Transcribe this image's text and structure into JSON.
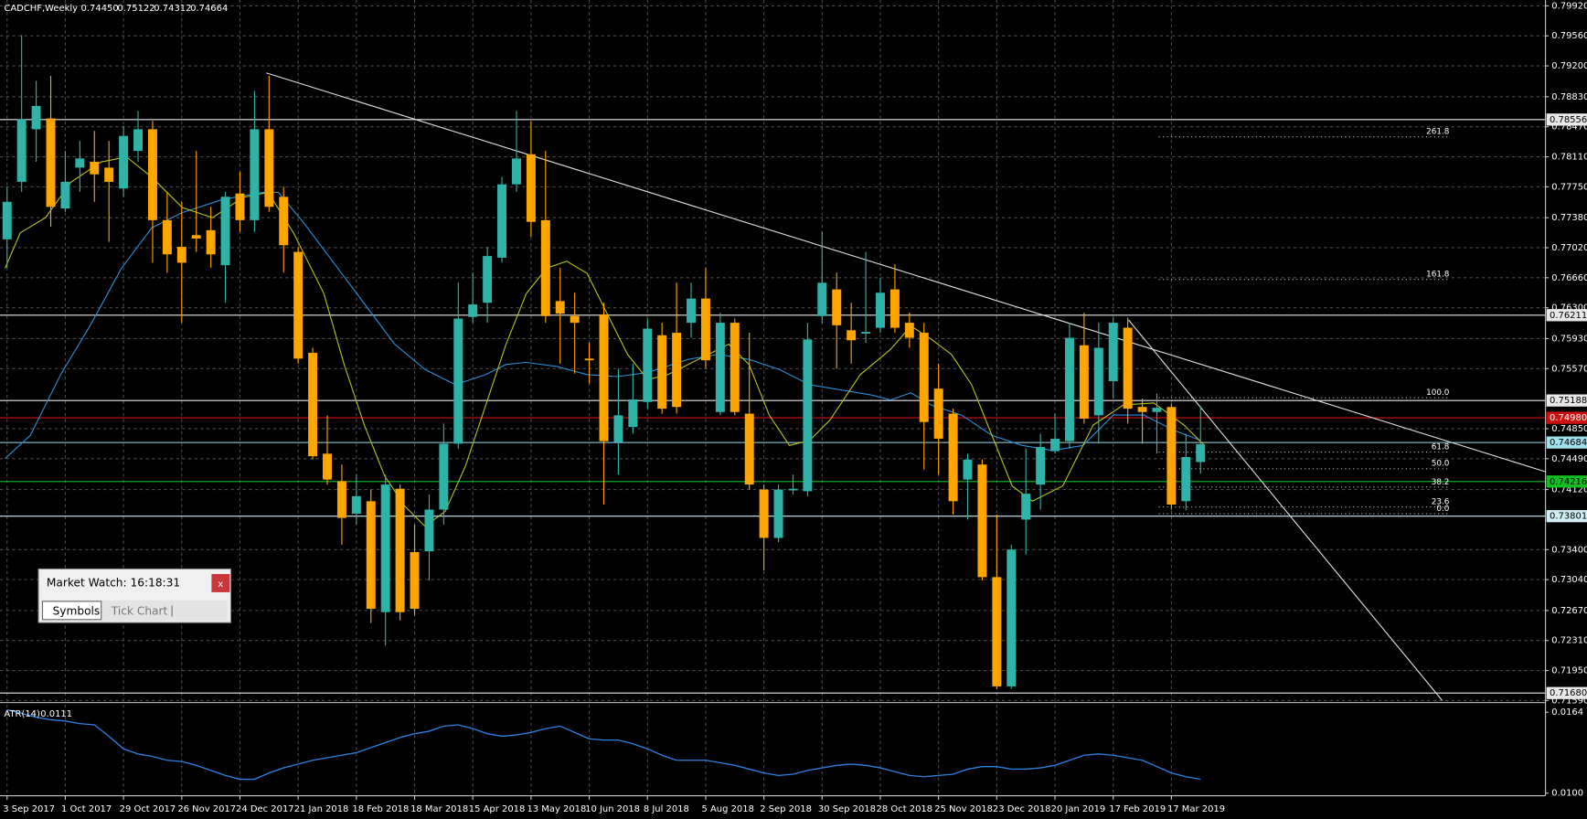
{
  "chart_data": {
    "type": "candlestick",
    "header": {
      "symbol": "CADCHF,Weekly",
      "ohlc": [
        "0.74450",
        "0.75122",
        "0.74312",
        "0.74664"
      ]
    },
    "categories": [
      "3 Sep 2017",
      null,
      null,
      null,
      "1 Oct 2017",
      null,
      null,
      null,
      "29 Oct 2017",
      null,
      null,
      null,
      "26 Nov 2017",
      null,
      null,
      null,
      "24 Dec 2017",
      null,
      null,
      null,
      "21 Jan 2018",
      null,
      null,
      null,
      "18 Feb 2018",
      null,
      null,
      null,
      "18 Mar 2018",
      null,
      null,
      null,
      "15 Apr 2018",
      null,
      null,
      null,
      "13 May 2018",
      null,
      null,
      null,
      "10 Jun 2018",
      null,
      null,
      null,
      "8 Jul 2018",
      null,
      null,
      null,
      "5 Aug 2018",
      null,
      null,
      null,
      "2 Sep 2018",
      null,
      null,
      null,
      "30 Sep 2018",
      null,
      null,
      null,
      "28 Oct 2018",
      null,
      null,
      null,
      "25 Nov 2018",
      null,
      null,
      null,
      "23 Dec 2018",
      null,
      null,
      null,
      "20 Jan 2019",
      null,
      null,
      null,
      "17 Feb 2019",
      null,
      null,
      null,
      "17 Mar 2019",
      null,
      null
    ],
    "open": [
      0.7712,
      0.7781,
      0.7844,
      0.7857,
      0.7749,
      0.7798,
      0.7805,
      0.7798,
      0.7773,
      0.7818,
      0.7844,
      0.7735,
      0.7703,
      0.7717,
      0.7723,
      0.7681,
      0.7767,
      0.7735,
      0.7844,
      0.7763,
      0.7697,
      0.7576,
      0.7455,
      0.7422,
      0.7383,
      0.7398,
      0.7265,
      0.7413,
      0.7337,
      0.7338,
      0.7388,
      0.7467,
      0.7619,
      0.7636,
      0.769,
      0.7778,
      0.7814,
      0.7735,
      0.7638,
      0.762,
      0.7569,
      0.7622,
      0.7469,
      0.7487,
      0.7517,
      0.7597,
      0.76,
      0.7612,
      0.7641,
      0.7505,
      0.7612,
      0.7503,
      0.7412,
      0.7354,
      0.7411,
      0.741,
      0.762,
      0.7652,
      0.7603,
      0.7599,
      0.7606,
      0.7652,
      0.7612,
      0.76,
      0.7533,
      0.7503,
      0.7424,
      0.7442,
      0.7307,
      0.7176,
      0.7376,
      0.7418,
      0.7458,
      0.747,
      0.7585,
      0.7501,
      0.7542,
      0.7606,
      0.7511,
      0.7505,
      0.7511,
      0.7398,
      0.7445
    ],
    "high": [
      0.7775,
      0.7957,
      0.7902,
      0.7908,
      0.7818,
      0.783,
      0.7842,
      0.783,
      0.7848,
      0.7866,
      0.7854,
      0.7769,
      0.7757,
      0.7818,
      0.7751,
      0.7769,
      0.7793,
      0.789,
      0.7908,
      0.7775,
      0.7703,
      0.7582,
      0.7501,
      0.7442,
      0.743,
      0.7412,
      0.743,
      0.7418,
      0.737,
      0.7406,
      0.7491,
      0.766,
      0.7672,
      0.7703,
      0.7787,
      0.7866,
      0.7854,
      0.7818,
      0.7678,
      0.7648,
      0.7588,
      0.7636,
      0.7557,
      0.7563,
      0.7617,
      0.7612,
      0.766,
      0.766,
      0.7678,
      0.7624,
      0.7617,
      0.76,
      0.7418,
      0.7418,
      0.743,
      0.7612,
      0.7721,
      0.7672,
      0.7636,
      0.7697,
      0.7666,
      0.7682,
      0.7624,
      0.7612,
      0.7563,
      0.7509,
      0.7455,
      0.7448,
      0.7382,
      0.7346,
      0.7461,
      0.7479,
      0.7503,
      0.7612,
      0.7624,
      0.7612,
      0.7618,
      0.7618,
      0.7521,
      0.7527,
      0.7515,
      0.7479,
      0.75122
    ],
    "low": [
      0.7678,
      0.7769,
      0.7805,
      0.7727,
      0.7745,
      0.7769,
      0.7757,
      0.7709,
      0.7763,
      0.7805,
      0.7684,
      0.7672,
      0.7612,
      0.7697,
      0.7678,
      0.7636,
      0.7721,
      0.7721,
      0.7745,
      0.7672,
      0.7563,
      0.7448,
      0.7418,
      0.7346,
      0.737,
      0.7252,
      0.7225,
      0.7255,
      0.7261,
      0.7303,
      0.737,
      0.7461,
      0.7612,
      0.7612,
      0.7684,
      0.7769,
      0.7715,
      0.7612,
      0.7563,
      0.7551,
      0.7539,
      0.7394,
      0.743,
      0.7479,
      0.7509,
      0.7503,
      0.7503,
      0.7594,
      0.7557,
      0.7501,
      0.7501,
      0.7412,
      0.7315,
      0.7349,
      0.7406,
      0.7404,
      0.7612,
      0.7557,
      0.7563,
      0.7588,
      0.76,
      0.76,
      0.7582,
      0.7436,
      0.743,
      0.7382,
      0.7376,
      0.7303,
      0.7173,
      0.7173,
      0.7334,
      0.7388,
      0.7455,
      0.7461,
      0.7491,
      0.7467,
      0.7521,
      0.7491,
      0.7467,
      0.7455,
      0.7388,
      0.7387,
      0.74312
    ],
    "close": [
      0.7757,
      0.7856,
      0.7872,
      0.7751,
      0.7781,
      0.7809,
      0.779,
      0.7781,
      0.7836,
      0.7844,
      0.7735,
      0.7694,
      0.7684,
      0.7713,
      0.7694,
      0.7763,
      0.7735,
      0.7844,
      0.7751,
      0.7705,
      0.7569,
      0.7452,
      0.7424,
      0.7378,
      0.7404,
      0.7269,
      0.7418,
      0.7265,
      0.7269,
      0.7388,
      0.7467,
      0.7617,
      0.7634,
      0.7692,
      0.7778,
      0.7809,
      0.7733,
      0.762,
      0.7623,
      0.7612,
      0.7567,
      0.747,
      0.7501,
      0.752,
      0.7605,
      0.7509,
      0.7511,
      0.7641,
      0.7567,
      0.7612,
      0.7505,
      0.7418,
      0.7354,
      0.7412,
      0.7413,
      0.7592,
      0.766,
      0.7609,
      0.7591,
      0.7601,
      0.7648,
      0.7606,
      0.7594,
      0.7493,
      0.7473,
      0.7398,
      0.7448,
      0.7307,
      0.7176,
      0.734,
      0.7407,
      0.7463,
      0.7473,
      0.7594,
      0.7497,
      0.7582,
      0.7612,
      0.7509,
      0.7505,
      0.751,
      0.7394,
      0.7451,
      0.74664
    ],
    "up_color": "#2fb3a8",
    "down_color": "#ffa500",
    "ylim": [
      0.7159,
      0.7999
    ],
    "yticks": [
      {
        "value": 0.7992,
        "label": "0.79920"
      },
      {
        "value": 0.7956,
        "label": "0.79560"
      },
      {
        "value": 0.792,
        "label": "0.79200"
      },
      {
        "value": 0.7883,
        "label": "0.78830"
      },
      {
        "value": 0.7847,
        "label": "0.78470"
      },
      {
        "value": 0.7811,
        "label": "0.78110"
      },
      {
        "value": 0.7775,
        "label": "0.77750"
      },
      {
        "value": 0.7738,
        "label": "0.77380"
      },
      {
        "value": 0.7702,
        "label": "0.77020"
      },
      {
        "value": 0.7666,
        "label": "0.76660"
      },
      {
        "value": 0.763,
        "label": "0.76300"
      },
      {
        "value": 0.7593,
        "label": "0.75930"
      },
      {
        "value": 0.7557,
        "label": "0.75570"
      },
      {
        "value": 0.7485,
        "label": "0.74850"
      },
      {
        "value": 0.7449,
        "label": "0.74490"
      },
      {
        "value": 0.7412,
        "label": "0.74120"
      },
      {
        "value": 0.734,
        "label": "0.73400"
      },
      {
        "value": 0.7304,
        "label": "0.73040"
      },
      {
        "value": 0.7267,
        "label": "0.72670"
      },
      {
        "value": 0.7231,
        "label": "0.72310"
      },
      {
        "value": 0.7195,
        "label": "0.71950"
      },
      {
        "value": 0.7159,
        "label": "0.71590"
      }
    ],
    "grid": true,
    "grid_color": "#4a4a4a",
    "levels": [
      {
        "value": 0.78556,
        "label": "0.78556",
        "color": "#e8e8e8"
      },
      {
        "value": 0.76211,
        "label": "0.76211",
        "color": "#e8e8e8"
      },
      {
        "value": 0.75188,
        "label": "0.75188",
        "color": "#e8e8e8"
      },
      {
        "value": 0.7498,
        "label": "0.74980",
        "color": "#d01010"
      },
      {
        "value": 0.74684,
        "label": "0.74684",
        "color": "#9fe0ec"
      },
      {
        "value": 0.74216,
        "label": "0.74216",
        "color": "#10c020"
      },
      {
        "value": 0.73801,
        "label": "0.73801",
        "color": "#cfeef5"
      },
      {
        "value": 0.7168,
        "label": "0.71680",
        "color": "#e8e8e8"
      }
    ],
    "fib": [
      {
        "label": "261.8",
        "price": 0.7835
      },
      {
        "label": "161.8",
        "price": 0.7664
      },
      {
        "label": "100.0",
        "price": 0.7522
      },
      {
        "label": "61.8",
        "price": 0.7457
      },
      {
        "label": "50.0",
        "price": 0.7437
      },
      {
        "label": "38.2",
        "price": 0.7415
      },
      {
        "label": "23.6",
        "price": 0.7391
      },
      {
        "label": "0.0",
        "price": 0.7383
      }
    ],
    "atr": {
      "label": "ATR(14)",
      "current": 0.0111,
      "color": "#2f7fe0",
      "values": [
        0.0166,
        0.0163,
        0.016,
        0.0158,
        0.0157,
        0.0155,
        0.0154,
        0.0145,
        0.0135,
        0.0131,
        0.0129,
        0.0126,
        0.0125,
        0.0122,
        0.0118,
        0.0114,
        0.0111,
        0.0111,
        0.0116,
        0.012,
        0.0123,
        0.0126,
        0.0128,
        0.013,
        0.0132,
        0.0136,
        0.014,
        0.0144,
        0.0147,
        0.0149,
        0.0153,
        0.0154,
        0.0151,
        0.0147,
        0.0145,
        0.0146,
        0.0148,
        0.0151,
        0.0153,
        0.0148,
        0.0143,
        0.0142,
        0.0142,
        0.0139,
        0.0135,
        0.013,
        0.0126,
        0.0126,
        0.0126,
        0.0124,
        0.0122,
        0.0119,
        0.0116,
        0.0114,
        0.0115,
        0.0118,
        0.012,
        0.0122,
        0.0123,
        0.0122,
        0.012,
        0.0117,
        0.0114,
        0.0113,
        0.0114,
        0.0115,
        0.0119,
        0.0121,
        0.0121,
        0.0119,
        0.0119,
        0.012,
        0.0122,
        0.0126,
        0.013,
        0.0131,
        0.013,
        0.0128,
        0.0126,
        0.0121,
        0.0116,
        0.0113,
        0.0111
      ],
      "ylim": [
        0.0098,
        0.017
      ],
      "yticks": [
        {
          "value": 0.0164,
          "label": "0.0164"
        },
        {
          "value": 0.01,
          "label": "0.0100"
        }
      ]
    }
  },
  "market_watch": {
    "title": "Market Watch: 16:18:31",
    "close": "x",
    "tabs": [
      "Symbols",
      "Tick Chart"
    ]
  }
}
